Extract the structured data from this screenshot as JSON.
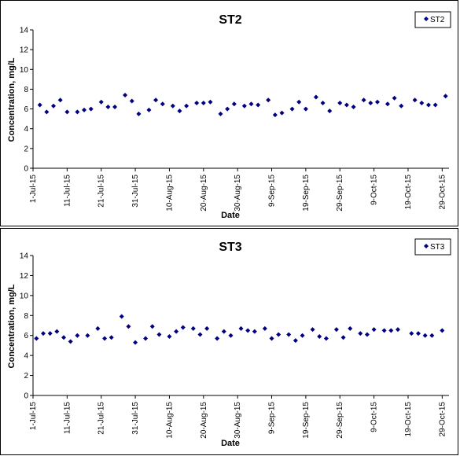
{
  "chart_data": [
    {
      "type": "scatter",
      "title": "ST2",
      "xlabel": "Date",
      "ylabel": "Concentration, mg/L",
      "ylim": [
        0,
        14
      ],
      "yticks": [
        0,
        2,
        4,
        6,
        8,
        10,
        12,
        14
      ],
      "xlim": [
        "2015-07-01",
        "2015-10-31"
      ],
      "xticks": [
        "1-Jul-15",
        "11-Jul-15",
        "21-Jul-15",
        "31-Jul-15",
        "10-Aug-15",
        "20-Aug-15",
        "30-Aug-15",
        "9-Sep-15",
        "19-Sep-15",
        "29-Sep-15",
        "9-Oct-15",
        "19-Oct-15",
        "29-Oct-15"
      ],
      "legend_position": "top-right",
      "marker_color": "#000080",
      "series": [
        {
          "name": "ST2",
          "points": [
            [
              "2015-07-03",
              6.4
            ],
            [
              "2015-07-05",
              5.7
            ],
            [
              "2015-07-07",
              6.3
            ],
            [
              "2015-07-09",
              6.9
            ],
            [
              "2015-07-11",
              5.7
            ],
            [
              "2015-07-14",
              5.7
            ],
            [
              "2015-07-16",
              5.9
            ],
            [
              "2015-07-18",
              6.0
            ],
            [
              "2015-07-21",
              6.7
            ],
            [
              "2015-07-23",
              6.2
            ],
            [
              "2015-07-25",
              6.2
            ],
            [
              "2015-07-28",
              7.4
            ],
            [
              "2015-07-30",
              6.8
            ],
            [
              "2015-08-01",
              5.5
            ],
            [
              "2015-08-04",
              5.9
            ],
            [
              "2015-08-06",
              6.9
            ],
            [
              "2015-08-08",
              6.5
            ],
            [
              "2015-08-11",
              6.3
            ],
            [
              "2015-08-13",
              5.8
            ],
            [
              "2015-08-15",
              6.3
            ],
            [
              "2015-08-18",
              6.6
            ],
            [
              "2015-08-20",
              6.6
            ],
            [
              "2015-08-22",
              6.7
            ],
            [
              "2015-08-25",
              5.5
            ],
            [
              "2015-08-27",
              6.0
            ],
            [
              "2015-08-29",
              6.5
            ],
            [
              "2015-09-01",
              6.3
            ],
            [
              "2015-09-03",
              6.5
            ],
            [
              "2015-09-05",
              6.4
            ],
            [
              "2015-09-08",
              6.9
            ],
            [
              "2015-09-10",
              5.4
            ],
            [
              "2015-09-12",
              5.6
            ],
            [
              "2015-09-15",
              6.0
            ],
            [
              "2015-09-17",
              6.7
            ],
            [
              "2015-09-19",
              6.0
            ],
            [
              "2015-09-22",
              7.2
            ],
            [
              "2015-09-24",
              6.6
            ],
            [
              "2015-09-26",
              5.8
            ],
            [
              "2015-09-29",
              6.6
            ],
            [
              "2015-10-01",
              6.4
            ],
            [
              "2015-10-03",
              6.2
            ],
            [
              "2015-10-06",
              6.9
            ],
            [
              "2015-10-08",
              6.6
            ],
            [
              "2015-10-10",
              6.7
            ],
            [
              "2015-10-13",
              6.5
            ],
            [
              "2015-10-15",
              7.1
            ],
            [
              "2015-10-17",
              6.3
            ],
            [
              "2015-10-21",
              6.9
            ],
            [
              "2015-10-23",
              6.6
            ],
            [
              "2015-10-25",
              6.4
            ],
            [
              "2015-10-27",
              6.4
            ],
            [
              "2015-10-30",
              7.3
            ]
          ]
        }
      ]
    },
    {
      "type": "scatter",
      "title": "ST3",
      "xlabel": "Date",
      "ylabel": "Concentration, mg/L",
      "ylim": [
        0,
        14
      ],
      "yticks": [
        0,
        2,
        4,
        6,
        8,
        10,
        12,
        14
      ],
      "xlim": [
        "2015-07-01",
        "2015-10-31"
      ],
      "xticks": [
        "1-Jul-15",
        "11-Jul-15",
        "21-Jul-15",
        "31-Jul-15",
        "10-Aug-15",
        "20-Aug-15",
        "30-Aug-15",
        "9-Sep-15",
        "19-Sep-15",
        "29-Sep-15",
        "9-Oct-15",
        "19-Oct-15",
        "29-Oct-15"
      ],
      "legend_position": "top-right",
      "marker_color": "#000080",
      "series": [
        {
          "name": "ST3",
          "points": [
            [
              "2015-07-02",
              5.7
            ],
            [
              "2015-07-04",
              6.2
            ],
            [
              "2015-07-06",
              6.2
            ],
            [
              "2015-07-08",
              6.4
            ],
            [
              "2015-07-10",
              5.8
            ],
            [
              "2015-07-12",
              5.4
            ],
            [
              "2015-07-14",
              6.0
            ],
            [
              "2015-07-17",
              6.0
            ],
            [
              "2015-07-20",
              6.7
            ],
            [
              "2015-07-22",
              5.7
            ],
            [
              "2015-07-24",
              5.8
            ],
            [
              "2015-07-27",
              7.9
            ],
            [
              "2015-07-29",
              6.9
            ],
            [
              "2015-07-31",
              5.3
            ],
            [
              "2015-08-03",
              5.7
            ],
            [
              "2015-08-05",
              6.9
            ],
            [
              "2015-08-07",
              6.1
            ],
            [
              "2015-08-10",
              5.9
            ],
            [
              "2015-08-12",
              6.4
            ],
            [
              "2015-08-14",
              6.8
            ],
            [
              "2015-08-17",
              6.7
            ],
            [
              "2015-08-19",
              6.1
            ],
            [
              "2015-08-21",
              6.7
            ],
            [
              "2015-08-24",
              5.7
            ],
            [
              "2015-08-26",
              6.4
            ],
            [
              "2015-08-28",
              6.0
            ],
            [
              "2015-08-31",
              6.7
            ],
            [
              "2015-09-02",
              6.5
            ],
            [
              "2015-09-04",
              6.4
            ],
            [
              "2015-09-07",
              6.7
            ],
            [
              "2015-09-09",
              5.7
            ],
            [
              "2015-09-11",
              6.1
            ],
            [
              "2015-09-14",
              6.1
            ],
            [
              "2015-09-16",
              5.5
            ],
            [
              "2015-09-18",
              6.0
            ],
            [
              "2015-09-21",
              6.6
            ],
            [
              "2015-09-23",
              5.9
            ],
            [
              "2015-09-25",
              5.7
            ],
            [
              "2015-09-28",
              6.6
            ],
            [
              "2015-09-30",
              5.8
            ],
            [
              "2015-10-02",
              6.7
            ],
            [
              "2015-10-05",
              6.2
            ],
            [
              "2015-10-07",
              6.1
            ],
            [
              "2015-10-09",
              6.6
            ],
            [
              "2015-10-12",
              6.5
            ],
            [
              "2015-10-14",
              6.5
            ],
            [
              "2015-10-16",
              6.6
            ],
            [
              "2015-10-20",
              6.2
            ],
            [
              "2015-10-22",
              6.2
            ],
            [
              "2015-10-24",
              6.0
            ],
            [
              "2015-10-26",
              6.0
            ],
            [
              "2015-10-29",
              6.5
            ]
          ]
        }
      ]
    }
  ]
}
